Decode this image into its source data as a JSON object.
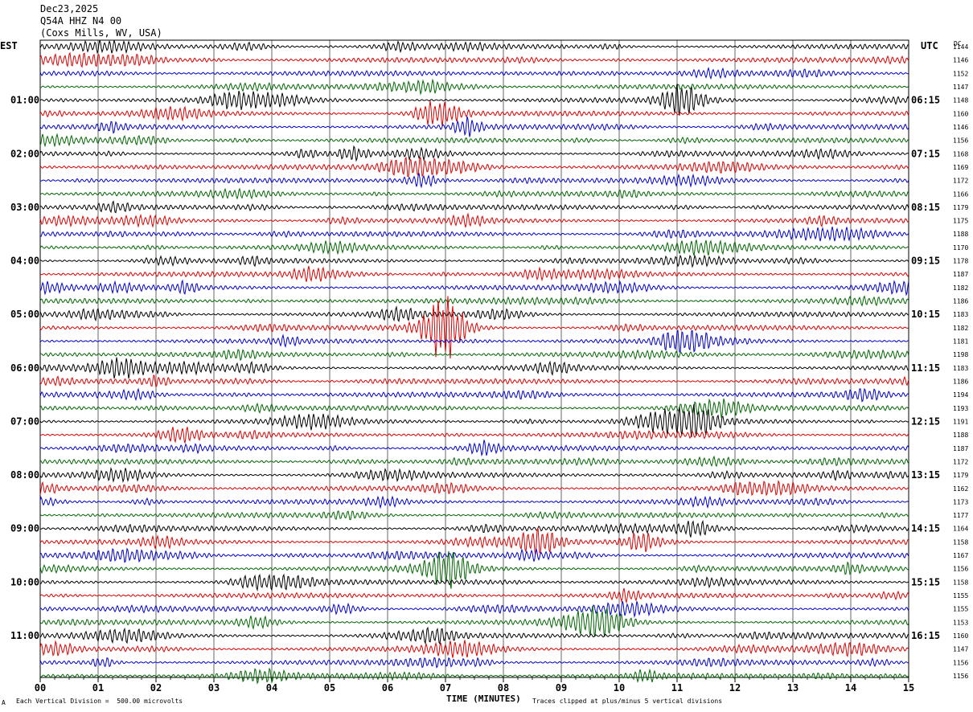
{
  "header": {
    "date": "Dec23,2025",
    "station": "Q54A HHZ N4 00",
    "location": "(Coxs Mills, WV, USA)"
  },
  "left_tz": "EST",
  "right_tz": "UTC",
  "right_col_header": "DC",
  "footer": {
    "scale_note": "Each Vertical Division =  500.00 microvolts",
    "clip_note": "Traces clipped at plus/minus 5 vertical divisions",
    "corner_mark": "A"
  },
  "colors": {
    "trace_cycle": [
      "#000000",
      "#dd0000",
      "#0000cc",
      "#006600"
    ],
    "grid": "#000000"
  },
  "chart_data": {
    "type": "seismogram helicorder",
    "xlabel": "TIME (MINUTES)",
    "xlim": [
      0,
      15
    ],
    "x_ticks": [
      "00",
      "01",
      "02",
      "03",
      "04",
      "05",
      "06",
      "07",
      "08",
      "09",
      "10",
      "11",
      "12",
      "13",
      "14",
      "15"
    ],
    "left_time_labels": [
      "01:00",
      "02:00",
      "03:00",
      "04:00",
      "05:00",
      "06:00",
      "07:00",
      "08:00",
      "09:00",
      "10:00",
      "11:00"
    ],
    "right_time_labels": [
      "06:15",
      "07:15",
      "08:15",
      "09:15",
      "10:15",
      "11:15",
      "12:15",
      "13:15",
      "14:15",
      "15:15",
      "16:15"
    ],
    "trace_count": 48,
    "label_every_n_traces": 4,
    "dc_offsets": [
      "1144",
      "1146",
      "1152",
      "1147",
      "1148",
      "1160",
      "1146",
      "1156",
      "1168",
      "1169",
      "1172",
      "1166",
      "1179",
      "1175",
      "1188",
      "1170",
      "1178",
      "1187",
      "1182",
      "1186",
      "1183",
      "1182",
      "1181",
      "1198",
      "1183",
      "1186",
      "1194",
      "1193",
      "1191",
      "1188",
      "1187",
      "1172",
      "1179",
      "1162",
      "1173",
      "1177",
      "1164",
      "1158",
      "1167",
      "1156",
      "1158",
      "1155",
      "1155",
      "1153",
      "1160",
      "1147",
      "1156",
      "1156"
    ]
  }
}
